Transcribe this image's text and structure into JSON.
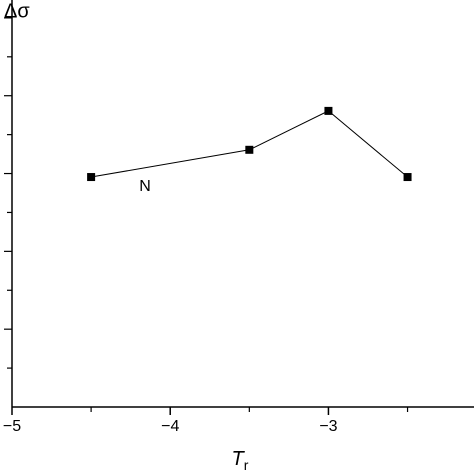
{
  "chart_data": {
    "type": "line",
    "ylabel": "Δσ",
    "xlabel": "T",
    "xlabel_subscript": "r",
    "annotation": "N",
    "x": [
      -4.5,
      -3.5,
      -3,
      -2.5
    ],
    "series": [
      {
        "color": "#000000",
        "values": [
          5.91,
          6.61,
          7.61,
          5.91
        ]
      }
    ],
    "xlim": [
      -5,
      -2.08
    ],
    "xticks": [
      {
        "value": -5,
        "label": "−5"
      },
      {
        "value": -4,
        "label": "−4"
      },
      {
        "value": -3,
        "label": "−3"
      }
    ],
    "xminor": [
      -4.5,
      -3.5,
      -2.5
    ],
    "ylim": [
      0,
      10.46
    ],
    "yticks": [
      1,
      2,
      3,
      4,
      5,
      6,
      7,
      8,
      9,
      10
    ]
  }
}
